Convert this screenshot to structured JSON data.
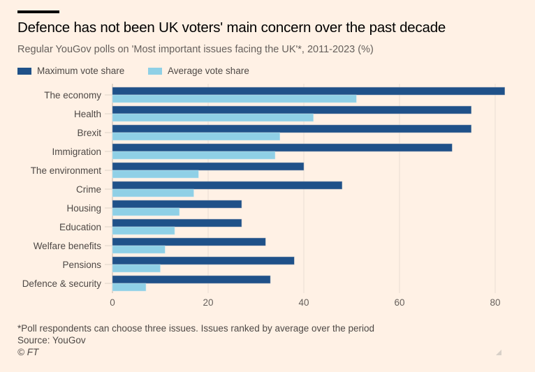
{
  "header": {
    "title": "Defence has not been UK voters' main concern over the past decade",
    "subtitle": "Regular YouGov polls on 'Most important issues facing the UK'*, 2011-2023 (%)"
  },
  "legend": {
    "items": [
      {
        "label": "Maximum vote share",
        "color": "#1f5189"
      },
      {
        "label": "Average vote share",
        "color": "#8fd0e6"
      }
    ]
  },
  "footer": {
    "note": "*Poll respondents can choose three issues. Issues ranked by average over the period",
    "source": "Source: YouGov",
    "credit": "© FT"
  },
  "chart_data": {
    "type": "bar",
    "orientation": "horizontal",
    "title": "Defence has not been UK voters' main concern over the past decade",
    "subtitle": "Regular YouGov polls on 'Most important issues facing the UK'*, 2011-2023 (%)",
    "xlabel": "",
    "ylabel": "",
    "xlim": [
      0,
      82.5
    ],
    "xticks": [
      0,
      20,
      40,
      60,
      80
    ],
    "grid": true,
    "legend_position": "top-left",
    "categories": [
      "The economy",
      "Health",
      "Brexit",
      "Immigration",
      "The environment",
      "Crime",
      "Housing",
      "Education",
      "Welfare benefits",
      "Pensions",
      "Defence & security"
    ],
    "series": [
      {
        "name": "Maximum vote share",
        "color": "#1f5189",
        "values": [
          82,
          75,
          75,
          71,
          40,
          48,
          27,
          27,
          32,
          38,
          33
        ]
      },
      {
        "name": "Average vote share",
        "color": "#8fd0e6",
        "values": [
          51,
          42,
          35,
          34,
          18,
          17,
          14,
          13,
          11,
          10,
          7
        ]
      }
    ]
  }
}
